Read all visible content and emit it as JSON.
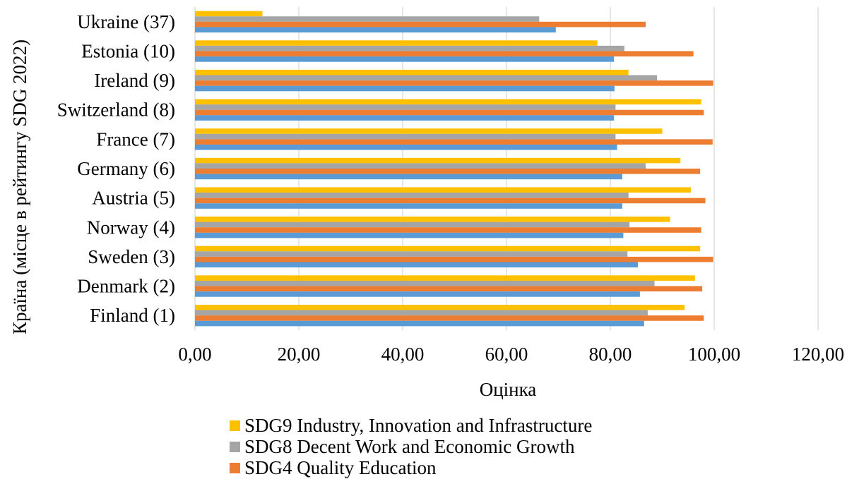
{
  "chart_data": {
    "type": "bar",
    "orientation": "horizontal",
    "title": "",
    "xlabel": "Оцінка",
    "ylabel": "Країна (місце в рейтингу SDG 2022)",
    "xlim": [
      0,
      120
    ],
    "x_ticks": [
      "0,00",
      "20,00",
      "40,00",
      "60,00",
      "80,00",
      "100,00",
      "120,00"
    ],
    "x_tick_values": [
      0,
      20,
      40,
      60,
      80,
      100,
      120
    ],
    "categories": [
      "Ukraine (37)",
      "Estonia (10)",
      "Ireland (9)",
      "Switzerland (8)",
      "France (7)",
      "Germany (6)",
      "Austria (5)",
      "Norway (4)",
      "Sweden (3)",
      "Denmark (2)",
      "Finland (1)"
    ],
    "series": [
      {
        "name": "SDG9 Industry, Innovation and Infrastructure",
        "color": "#FFC000",
        "values": [
          13.0,
          77.5,
          83.5,
          97.5,
          90.0,
          93.5,
          95.5,
          91.5,
          97.3,
          96.3,
          94.3
        ]
      },
      {
        "name": "SDG8 Decent Work and Economic Growth",
        "color": "#A5A5A5",
        "values": [
          66.3,
          82.7,
          89.0,
          81.0,
          81.0,
          86.8,
          83.5,
          83.7,
          83.3,
          88.5,
          87.2
        ]
      },
      {
        "name": "SDG4 Quality Education",
        "color": "#ED7D31",
        "values": [
          86.8,
          96.0,
          99.8,
          98.0,
          99.7,
          97.3,
          98.3,
          97.5,
          99.8,
          97.7,
          98.0
        ]
      },
      {
        "color": "#5B9BD5",
        "values": [
          69.5,
          80.7,
          80.8,
          80.7,
          81.3,
          82.3,
          82.3,
          82.5,
          85.3,
          85.7,
          86.5
        ]
      }
    ],
    "grid": true,
    "legend_position": "bottom"
  },
  "legend": [
    {
      "label": "SDG9 Industry, Innovation and Infrastructure",
      "color": "#FFC000"
    },
    {
      "label": "SDG8 Decent Work and Economic Growth",
      "color": "#A5A5A5"
    },
    {
      "label": "SDG4 Quality Education",
      "color": "#ED7D31"
    }
  ]
}
